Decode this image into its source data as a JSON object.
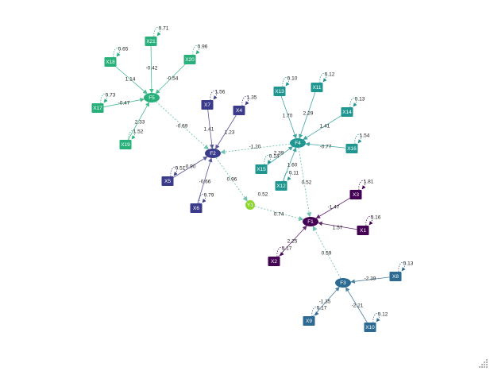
{
  "colors": {
    "F1": "#440154",
    "F2": "#3b3b8b",
    "F3": "#2c6a92",
    "F4": "#1f9690",
    "F5": "#27b07a",
    "Y1": "#8ed62f",
    "directed_edge": "#555555",
    "correlation_edge": "#5cb8a8"
  },
  "nodes": [
    {
      "id": "F1",
      "label": "F1",
      "shape": "ellipse",
      "group": "F1"
    },
    {
      "id": "F2",
      "label": "F2",
      "shape": "ellipse",
      "group": "F2"
    },
    {
      "id": "F3",
      "label": "F3",
      "shape": "ellipse",
      "group": "F3"
    },
    {
      "id": "F4",
      "label": "F4",
      "shape": "ellipse",
      "group": "F4"
    },
    {
      "id": "F5",
      "label": "F5",
      "shape": "ellipse",
      "group": "F5"
    },
    {
      "id": "Y1",
      "label": "Y1",
      "shape": "circle",
      "group": "Y1"
    },
    {
      "id": "X1",
      "label": "X1",
      "shape": "box",
      "group": "F1",
      "variance": "0.16"
    },
    {
      "id": "X2",
      "label": "X2",
      "shape": "box",
      "group": "F1",
      "variance": "0.17"
    },
    {
      "id": "X3",
      "label": "X3",
      "shape": "box",
      "group": "F1",
      "variance": "1.81"
    },
    {
      "id": "X4",
      "label": "X4",
      "shape": "box",
      "group": "F2",
      "variance": "1.35"
    },
    {
      "id": "X5",
      "label": "X5",
      "shape": "box",
      "group": "F2",
      "variance": "0.51"
    },
    {
      "id": "X6",
      "label": "X6",
      "shape": "box",
      "group": "F2",
      "variance": "0.79"
    },
    {
      "id": "X7",
      "label": "X7",
      "shape": "box",
      "group": "F2",
      "variance": "1.56"
    },
    {
      "id": "X8",
      "label": "X8",
      "shape": "box",
      "group": "F3",
      "variance": "0.13"
    },
    {
      "id": "X9",
      "label": "X9",
      "shape": "box",
      "group": "F3",
      "variance": "0.17"
    },
    {
      "id": "X10",
      "label": "X10",
      "shape": "box",
      "group": "F3",
      "variance": "0.12"
    },
    {
      "id": "X11",
      "label": "X11",
      "shape": "box",
      "group": "F4",
      "variance": "0.12"
    },
    {
      "id": "X12",
      "label": "X12",
      "shape": "box",
      "group": "F4",
      "variance": "0.11"
    },
    {
      "id": "X13",
      "label": "X13",
      "shape": "box",
      "group": "F4",
      "variance": "0.10"
    },
    {
      "id": "X14",
      "label": "X14",
      "shape": "box",
      "group": "F4",
      "variance": "0.13"
    },
    {
      "id": "X15",
      "label": "X15",
      "shape": "box",
      "group": "F4",
      "variance": "0.14"
    },
    {
      "id": "X16",
      "label": "X16",
      "shape": "box",
      "group": "F4",
      "variance": "1.54"
    },
    {
      "id": "X17",
      "label": "X17",
      "shape": "box",
      "group": "F5",
      "variance": "0.73"
    },
    {
      "id": "X18",
      "label": "X18",
      "shape": "box",
      "group": "F5",
      "variance": "0.65"
    },
    {
      "id": "X19",
      "label": "X19",
      "shape": "box",
      "group": "F5",
      "variance": "1.52"
    },
    {
      "id": "X20",
      "label": "X20",
      "shape": "box",
      "group": "F5",
      "variance": "0.96"
    },
    {
      "id": "X21",
      "label": "X21",
      "shape": "box",
      "group": "F5",
      "variance": "0.71"
    }
  ],
  "edges": [
    {
      "from": "X18",
      "to": "F5",
      "label": "1.14"
    },
    {
      "from": "X21",
      "to": "F5",
      "label": "-0.42"
    },
    {
      "from": "X20",
      "to": "F5",
      "label": "-0.54"
    },
    {
      "from": "X17",
      "to": "F5",
      "label": "-0.47"
    },
    {
      "from": "X19",
      "to": "F5",
      "label": "2.33"
    },
    {
      "from": "X7",
      "to": "F2",
      "label": "1.41"
    },
    {
      "from": "X4",
      "to": "F2",
      "label": "1.23"
    },
    {
      "from": "X5",
      "to": "F2",
      "label": "-0.90"
    },
    {
      "from": "X6",
      "to": "F2",
      "label": "-0.66"
    },
    {
      "from": "X13",
      "to": "F4",
      "label": "1.70"
    },
    {
      "from": "X11",
      "to": "F4",
      "label": "2.29"
    },
    {
      "from": "X14",
      "to": "F4",
      "label": "1.41"
    },
    {
      "from": "X16",
      "to": "F4",
      "label": "-0.77"
    },
    {
      "from": "X15",
      "to": "F4",
      "label": "2.39"
    },
    {
      "from": "X12",
      "to": "F4",
      "label": "1.60"
    },
    {
      "from": "X3",
      "to": "F1",
      "label": "-1.47"
    },
    {
      "from": "X1",
      "to": "F1",
      "label": "1.57"
    },
    {
      "from": "X2",
      "to": "F1",
      "label": "2.25"
    },
    {
      "from": "X8",
      "to": "F3",
      "label": "-2.39"
    },
    {
      "from": "X9",
      "to": "F3",
      "label": "-1.35"
    },
    {
      "from": "X10",
      "to": "F3",
      "label": "-2.21"
    },
    {
      "from": "F5",
      "to": "F2",
      "label": "-0.69",
      "dashed": true
    },
    {
      "from": "F4",
      "to": "F2",
      "label": "-1.20",
      "dashed": true
    },
    {
      "from": "F2",
      "to": "Y1",
      "label": "0.96",
      "dashed": true
    },
    {
      "from": "F4",
      "to": "F1",
      "label": "0.52",
      "dashed": true
    },
    {
      "from": "Y1",
      "to": "F1",
      "label": "0.74",
      "dashed": true
    },
    {
      "from": "F3",
      "to": "F1",
      "label": "0.59",
      "dashed": true
    }
  ],
  "free_labels": [
    {
      "id": "y1-variance",
      "text": "0.52"
    }
  ]
}
